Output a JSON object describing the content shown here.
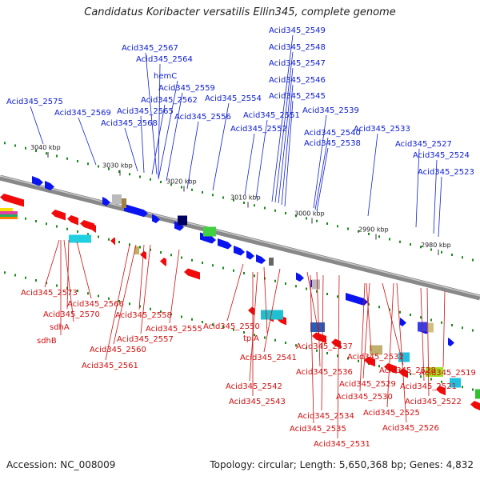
{
  "title": "Candidatus Koribacter versatilis Ellin345, complete genome",
  "accession": "Accession: NC_008009",
  "summary": "Topology: circular; Length: 5,650,368 bp; Genes: 4,832",
  "colors": {
    "forward_label": "#1020d0",
    "reverse_label": "#d01010",
    "forward_gene": "#0a14f0",
    "reverse_gene": "#f00a0a"
  },
  "ticks": [
    "3040 kbp",
    "3030 kbp",
    "3020 kbp",
    "3010 kbp",
    "3000 kbp",
    "2990 kbp",
    "2980 kbp"
  ],
  "forward_labels": [
    "Acid345_2575",
    "Acid345_2569",
    "Acid345_2567",
    "Acid345_2564",
    "hemC",
    "Acid345_2568",
    "Acid345_2565",
    "Acid345_2562",
    "Acid345_2559",
    "Acid345_2556",
    "Acid345_2554",
    "Acid345_2552",
    "Acid345_2551",
    "Acid345_2549",
    "Acid345_2548",
    "Acid345_2547",
    "Acid345_2546",
    "Acid345_2545",
    "Acid345_2539",
    "Acid345_2540",
    "Acid345_2538",
    "Acid345_2533",
    "Acid345_2527",
    "Acid345_2524",
    "Acid345_2523"
  ],
  "reverse_labels": [
    "Acid345_2573",
    "Acid345_2566",
    "Acid345_2570",
    "sdhA",
    "sdhB",
    "Acid345_2558",
    "Acid345_2555",
    "Acid345_2557",
    "Acid345_2560",
    "Acid345_2561",
    "Acid345_2550",
    "tpiA",
    "Acid345_2541",
    "Acid345_2537",
    "Acid345_2536",
    "Acid345_2542",
    "Acid345_2543",
    "Acid345_2534",
    "Acid345_2535",
    "Acid345_2531",
    "Acid345_2532",
    "Acid345_2528",
    "Acid345_2529",
    "Acid345_2530",
    "Acid345_2525",
    "Acid345_2526",
    "Acid345_2521",
    "Acid345_2522",
    "Acid345_2519"
  ]
}
